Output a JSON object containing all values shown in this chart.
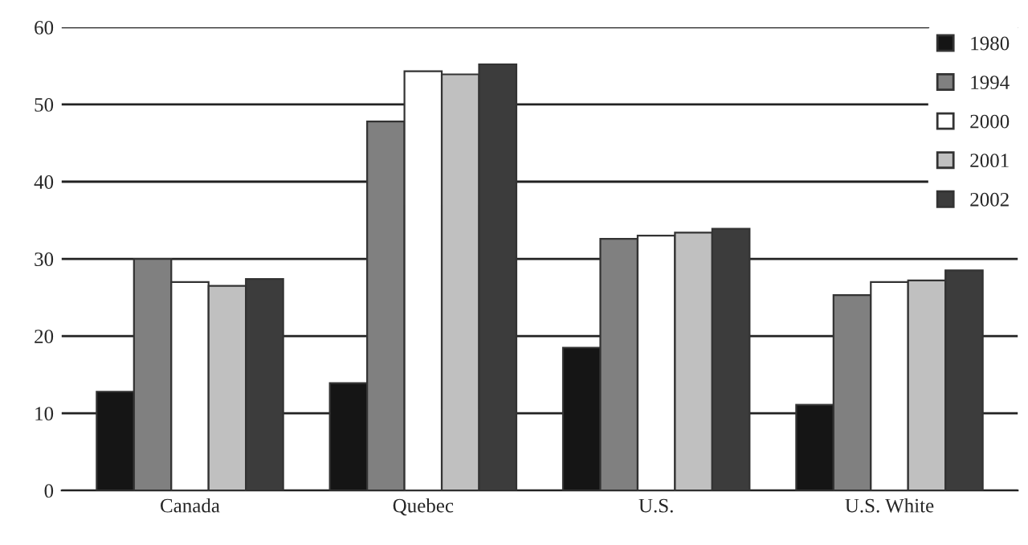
{
  "chart_data": {
    "type": "bar",
    "categories": [
      "Canada",
      "Quebec",
      "U.S.",
      "U.S. White"
    ],
    "series": [
      {
        "name": "1980",
        "color": "#151515",
        "values": [
          12.8,
          13.9,
          18.5,
          11.1
        ]
      },
      {
        "name": "1994",
        "color": "#808080",
        "values": [
          30,
          47.8,
          32.6,
          25.3
        ]
      },
      {
        "name": "2000",
        "color": "#ffffff",
        "values": [
          27,
          54.3,
          33.0,
          27
        ]
      },
      {
        "name": "2001",
        "color": "#c0c0c0",
        "values": [
          26.5,
          53.9,
          33.4,
          27.2
        ]
      },
      {
        "name": "2002",
        "color": "#3c3c3c",
        "values": [
          27.4,
          55.2,
          33.9,
          28.5
        ]
      }
    ],
    "ylim": [
      0,
      60
    ],
    "yticks": [
      0,
      10,
      20,
      30,
      40,
      50,
      60
    ],
    "grid": "y",
    "legend": "top right"
  }
}
